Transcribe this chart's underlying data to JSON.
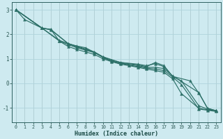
{
  "xlabel": "Humidex (Indice chaleur)",
  "background_color": "#ceeaf0",
  "grid_color": "#aed4dc",
  "line_color": "#2d7068",
  "xlim": [
    -0.5,
    23.5
  ],
  "ylim": [
    -1.6,
    3.3
  ],
  "xticks": [
    0,
    1,
    2,
    3,
    4,
    5,
    6,
    7,
    8,
    9,
    10,
    11,
    12,
    13,
    14,
    15,
    16,
    17,
    18,
    19,
    20,
    21,
    22,
    23
  ],
  "yticks": [
    -1,
    0,
    1,
    2,
    3
  ],
  "lines": [
    {
      "x": [
        0,
        1,
        3,
        5,
        6,
        7,
        8,
        9,
        10,
        11,
        12,
        13,
        14,
        15,
        16,
        17,
        18,
        19,
        21,
        22,
        23
      ],
      "y": [
        3.0,
        2.6,
        2.25,
        1.72,
        1.5,
        1.38,
        1.28,
        1.18,
        1.0,
        0.88,
        0.78,
        0.72,
        0.65,
        0.58,
        0.52,
        0.45,
        0.18,
        -0.42,
        -1.02,
        -1.08,
        -1.12
      ]
    },
    {
      "x": [
        0,
        3,
        4,
        6,
        7,
        8,
        9,
        10,
        11,
        12,
        13,
        14,
        15,
        16,
        17,
        18,
        19,
        21,
        22,
        23
      ],
      "y": [
        3.0,
        2.25,
        2.18,
        1.62,
        1.48,
        1.38,
        1.28,
        1.05,
        0.9,
        0.82,
        0.74,
        0.68,
        0.62,
        0.58,
        0.52,
        0.25,
        -0.05,
        -1.05,
        -1.1,
        -1.15
      ]
    },
    {
      "x": [
        0,
        3,
        4,
        5,
        6,
        7,
        8,
        9,
        10,
        11,
        12,
        14,
        15,
        16,
        17,
        18,
        21,
        22,
        23
      ],
      "y": [
        3.0,
        2.25,
        2.2,
        1.72,
        1.58,
        1.45,
        1.35,
        1.25,
        1.06,
        0.9,
        0.82,
        0.72,
        0.65,
        0.65,
        0.6,
        0.3,
        -0.38,
        -1.02,
        -1.12
      ]
    },
    {
      "x": [
        0,
        3,
        4,
        6,
        7,
        8,
        10,
        11,
        12,
        14,
        15,
        16,
        17,
        18,
        19,
        21,
        22,
        23
      ],
      "y": [
        3.0,
        2.25,
        2.2,
        1.62,
        1.52,
        1.45,
        1.08,
        0.94,
        0.85,
        0.78,
        0.72,
        0.8,
        0.68,
        0.28,
        0.1,
        -0.92,
        -1.05,
        -1.12
      ]
    },
    {
      "x": [
        0,
        3,
        5,
        6,
        8,
        9,
        10,
        12,
        14,
        15,
        16,
        17,
        18,
        20,
        21,
        22,
        23
      ],
      "y": [
        3.0,
        2.25,
        1.75,
        1.62,
        1.4,
        1.28,
        1.08,
        0.85,
        0.75,
        0.68,
        0.85,
        0.72,
        0.28,
        0.1,
        -0.4,
        -1.02,
        -1.12
      ]
    }
  ]
}
